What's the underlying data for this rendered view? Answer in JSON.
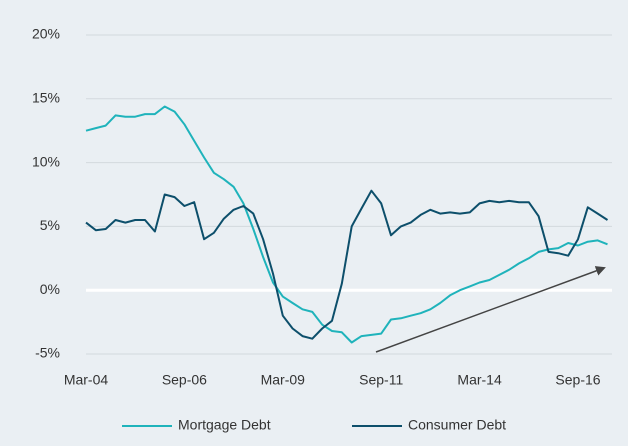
{
  "chart_data": {
    "type": "line",
    "categories": [
      "Mar-04",
      null,
      null,
      null,
      null,
      null,
      null,
      null,
      null,
      null,
      "Sep-06",
      null,
      null,
      null,
      null,
      null,
      null,
      null,
      null,
      null,
      "Mar-09",
      null,
      null,
      null,
      null,
      null,
      null,
      null,
      null,
      null,
      "Sep-11",
      null,
      null,
      null,
      null,
      null,
      null,
      null,
      null,
      null,
      "Mar-14",
      null,
      null,
      null,
      null,
      null,
      null,
      null,
      null,
      null,
      "Sep-16",
      null,
      null,
      null
    ],
    "series": [
      {
        "name": "Mortgage Debt",
        "color": "#1fb3bb",
        "values": [
          12.5,
          12.7,
          12.9,
          13.7,
          13.6,
          13.6,
          13.8,
          13.8,
          14.4,
          14.0,
          13.0,
          11.7,
          10.4,
          9.2,
          8.7,
          8.1,
          6.8,
          4.8,
          2.6,
          0.6,
          -0.5,
          -1.0,
          -1.5,
          -1.7,
          -2.7,
          -3.2,
          -3.3,
          -4.1,
          -3.6,
          -3.5,
          -3.4,
          -2.3,
          -2.2,
          -2.0,
          -1.8,
          -1.5,
          -1.0,
          -0.4,
          0.0,
          0.3,
          0.6,
          0.8,
          1.2,
          1.6,
          2.1,
          2.5,
          3.0,
          3.2,
          3.3,
          3.7,
          3.5,
          3.8,
          3.9,
          3.6
        ]
      },
      {
        "name": "Consumer Debt",
        "color": "#0d4f6b",
        "values": [
          5.3,
          4.7,
          4.8,
          5.5,
          5.3,
          5.5,
          5.5,
          4.6,
          7.5,
          7.3,
          6.6,
          6.9,
          4.0,
          4.5,
          5.6,
          6.3,
          6.6,
          6.0,
          4.0,
          1.3,
          -2.0,
          -3.0,
          -3.6,
          -3.8,
          -3.0,
          -2.4,
          0.5,
          5.0,
          6.4,
          7.8,
          6.8,
          4.3,
          5.0,
          5.3,
          5.9,
          6.3,
          6.0,
          6.1,
          6.0,
          6.1,
          6.8,
          7.0,
          6.9,
          7.0,
          6.9,
          6.9,
          5.8,
          3.0,
          2.9,
          2.7,
          4.0,
          6.5,
          6.0,
          5.5
        ]
      }
    ],
    "ylim": [
      -5,
      20
    ],
    "yticks": [
      {
        "value": -5,
        "label": "-5%"
      },
      {
        "value": 0,
        "label": "0%"
      },
      {
        "value": 5,
        "label": "5%"
      },
      {
        "value": 10,
        "label": "10%"
      },
      {
        "value": 15,
        "label": "15%"
      },
      {
        "value": 20,
        "label": "20%"
      }
    ],
    "grid": true,
    "legend": "bottom"
  }
}
